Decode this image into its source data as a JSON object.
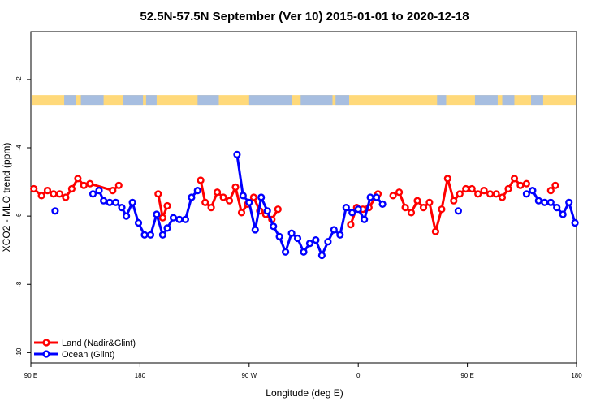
{
  "chart_data": {
    "type": "line",
    "title": "52.5N-57.5N September (Ver 10)   2015-01-01 to 2020-12-18",
    "xlabel": "Longitude (deg E)",
    "ylabel": "XCO2 - MLO trend (ppm)",
    "xlim": [
      90,
      450
    ],
    "ylim": [
      -10.3,
      -0.6
    ],
    "x_ticks": [
      {
        "value": 90,
        "label": "90 E"
      },
      {
        "value": 162,
        "label": "180"
      },
      {
        "value": 234,
        "label": "90 W"
      },
      {
        "value": 306,
        "label": "0"
      },
      {
        "value": 378,
        "label": "90 E"
      },
      {
        "value": 450,
        "label": "180"
      }
    ],
    "y_ticks": [
      -2,
      -4,
      -6,
      -8,
      -10
    ],
    "grid": false,
    "legend_position": "bottom-left",
    "land_sea_strip": {
      "y_center": -2.6,
      "land_color": "#FFD97A",
      "ocean_color": "#A7BEE0"
    },
    "series": [
      {
        "name": "Land (Nadir&Glint)",
        "color": "#ff0000",
        "points": [
          [
            92,
            -5.2
          ],
          [
            97,
            -5.4
          ],
          [
            101,
            -5.25
          ],
          [
            105,
            -5.35
          ],
          [
            109,
            -5.35
          ],
          [
            113,
            -5.45
          ],
          [
            117,
            -5.2
          ],
          [
            121,
            -4.9
          ],
          [
            125,
            -5.1
          ],
          [
            129,
            -5.05
          ],
          [
            144,
            -5.25
          ],
          [
            148,
            -5.1
          ],
          null,
          [
            174,
            -5.35
          ],
          [
            177,
            -6.05
          ],
          [
            180,
            -5.7
          ],
          null,
          [
            202,
            -4.95
          ],
          [
            205,
            -5.6
          ],
          [
            209,
            -5.75
          ],
          [
            213,
            -5.3
          ],
          [
            217,
            -5.45
          ],
          [
            221,
            -5.55
          ],
          [
            225,
            -5.15
          ],
          [
            229,
            -5.9
          ],
          [
            233,
            -5.65
          ],
          [
            237,
            -5.45
          ],
          [
            241,
            -5.85
          ],
          [
            245,
            -5.95
          ],
          [
            249,
            -6.1
          ],
          [
            253,
            -5.8
          ],
          null,
          [
            301,
            -6.25
          ],
          [
            305,
            -5.75
          ],
          [
            309,
            -5.8
          ],
          [
            313,
            -5.75
          ],
          [
            319,
            -5.35
          ],
          null,
          [
            329,
            -5.4
          ],
          [
            333,
            -5.3
          ],
          [
            337,
            -5.75
          ],
          [
            341,
            -5.9
          ],
          [
            345,
            -5.55
          ],
          [
            349,
            -5.75
          ],
          [
            353,
            -5.6
          ],
          [
            357,
            -6.45
          ],
          [
            361,
            -5.8
          ],
          [
            365,
            -4.9
          ],
          [
            369,
            -5.55
          ],
          [
            373,
            -5.35
          ],
          [
            377,
            -5.2
          ],
          [
            381,
            -5.2
          ],
          [
            385,
            -5.35
          ],
          [
            389,
            -5.25
          ],
          [
            393,
            -5.35
          ],
          [
            397,
            -5.35
          ],
          [
            401,
            -5.45
          ],
          [
            405,
            -5.2
          ],
          [
            409,
            -4.9
          ],
          [
            413,
            -5.1
          ],
          [
            417,
            -5.05
          ],
          null,
          [
            433,
            -5.25
          ],
          [
            436,
            -5.1
          ]
        ]
      },
      {
        "name": "Ocean (Glint)",
        "color": "#0000ff",
        "points": [
          [
            106,
            -5.85
          ],
          null,
          [
            131,
            -5.35
          ],
          [
            135,
            -5.25
          ],
          [
            138,
            -5.55
          ],
          [
            142,
            -5.6
          ],
          [
            146,
            -5.6
          ],
          [
            150,
            -5.75
          ],
          [
            153,
            -6.0
          ],
          [
            157,
            -5.6
          ],
          [
            161,
            -6.2
          ],
          [
            165,
            -6.55
          ],
          [
            169,
            -6.55
          ],
          [
            173,
            -5.95
          ],
          [
            177,
            -6.55
          ],
          [
            180,
            -6.35
          ],
          [
            184,
            -6.05
          ],
          [
            188,
            -6.1
          ],
          [
            192,
            -6.1
          ],
          [
            196,
            -5.45
          ],
          [
            200,
            -5.25
          ],
          null,
          [
            226,
            -4.2
          ],
          [
            230,
            -5.4
          ],
          [
            234,
            -5.6
          ],
          [
            238,
            -6.4
          ],
          [
            242,
            -5.45
          ],
          [
            246,
            -5.85
          ],
          [
            250,
            -6.3
          ],
          [
            254,
            -6.6
          ],
          [
            258,
            -7.05
          ],
          [
            262,
            -6.5
          ],
          [
            266,
            -6.65
          ],
          [
            270,
            -7.05
          ],
          [
            274,
            -6.8
          ],
          [
            278,
            -6.7
          ],
          [
            282,
            -7.15
          ],
          [
            286,
            -6.75
          ],
          [
            290,
            -6.4
          ],
          [
            294,
            -6.55
          ],
          [
            298,
            -5.75
          ],
          [
            302,
            -5.9
          ],
          [
            306,
            -5.8
          ],
          [
            310,
            -6.1
          ],
          [
            314,
            -5.45
          ],
          [
            318,
            -5.45
          ],
          [
            322,
            -5.65
          ],
          null,
          [
            372,
            -5.85
          ],
          null,
          [
            417,
            -5.35
          ],
          [
            421,
            -5.25
          ],
          [
            425,
            -5.55
          ],
          [
            429,
            -5.6
          ],
          [
            433,
            -5.6
          ],
          [
            437,
            -5.75
          ],
          [
            441,
            -5.95
          ],
          [
            445,
            -5.6
          ],
          [
            449,
            -6.2
          ]
        ]
      }
    ]
  }
}
